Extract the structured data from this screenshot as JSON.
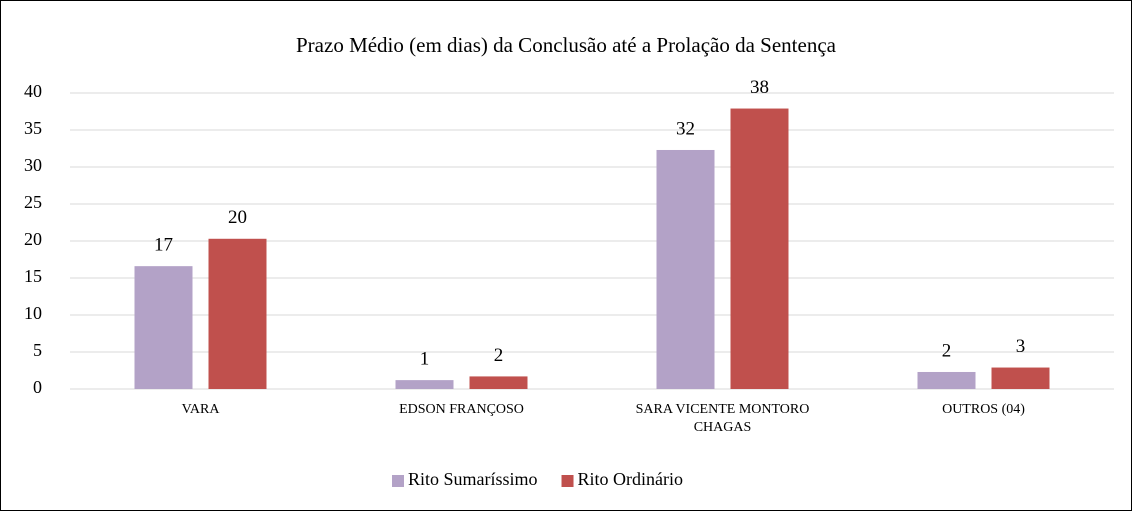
{
  "chart_data": {
    "type": "bar",
    "title": "Prazo Médio (em dias) da Conclusão até a Prolação da Sentença",
    "categories": [
      "VARA",
      "EDSON FRANÇOSO",
      "SARA VICENTE MONTORO CHAGAS",
      "OUTROS (04)"
    ],
    "series": [
      {
        "name": "Rito Sumaríssimo",
        "color": "#b3a2c7",
        "values": [
          16.6,
          1.2,
          32.3,
          2.3
        ],
        "value_labels": [
          "17",
          "1",
          "32",
          "2"
        ]
      },
      {
        "name": "Rito Ordinário",
        "color": "#c0504d",
        "values": [
          20.3,
          1.7,
          37.9,
          2.9
        ],
        "value_labels": [
          "20",
          "2",
          "38",
          "3"
        ]
      }
    ],
    "ylim": [
      0,
      40
    ],
    "yticks": [
      0,
      5,
      10,
      15,
      20,
      25,
      30,
      35,
      40
    ],
    "grid": true,
    "legend": "bottom"
  }
}
